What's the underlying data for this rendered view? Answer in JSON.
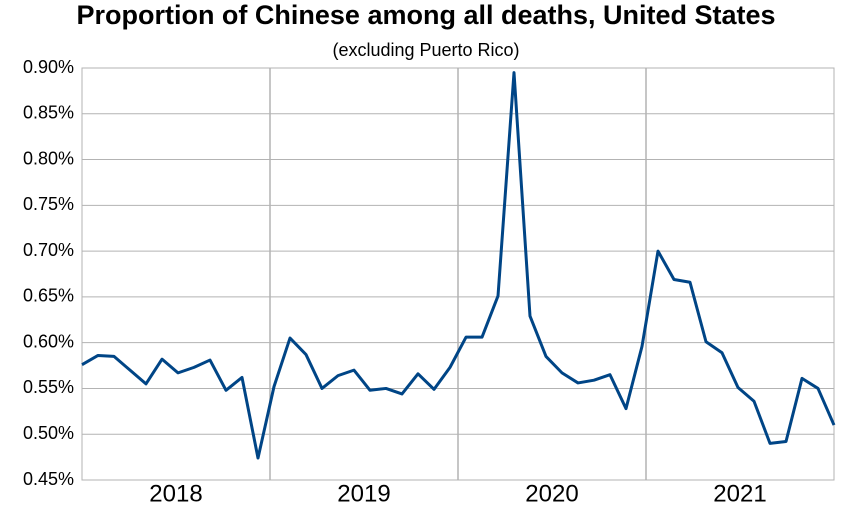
{
  "chart_data": {
    "type": "line",
    "title": "Proportion of Chinese among all deaths, United States",
    "subtitle": "(excluding Puerto Rico)",
    "years": [
      "2018",
      "2019",
      "2020",
      "2021"
    ],
    "series": [
      {
        "color": "#004586",
        "values": [
          0.576,
          0.586,
          0.585,
          0.57,
          0.555,
          0.582,
          0.567,
          0.573,
          0.581,
          0.548,
          0.562,
          0.474,
          0.552,
          0.605,
          0.587,
          0.55,
          0.564,
          0.57,
          0.548,
          0.55,
          0.544,
          0.566,
          0.549,
          0.573,
          0.606,
          0.606,
          0.651,
          0.895,
          0.629,
          0.585,
          0.567,
          0.556,
          0.559,
          0.565,
          0.528,
          0.596,
          0.7,
          0.669,
          0.666,
          0.601,
          0.589,
          0.551,
          0.536,
          0.49,
          0.492,
          0.561,
          0.55,
          0.51
        ]
      }
    ],
    "ylim": [
      0.45,
      0.9
    ],
    "yticks": [
      {
        "value": 0.45,
        "label": "0.45%"
      },
      {
        "value": 0.5,
        "label": "0.50%"
      },
      {
        "value": 0.55,
        "label": "0.55%"
      },
      {
        "value": 0.6,
        "label": "0.60%"
      },
      {
        "value": 0.65,
        "label": "0.65%"
      },
      {
        "value": 0.7,
        "label": "0.70%"
      },
      {
        "value": 0.75,
        "label": "0.75%"
      },
      {
        "value": 0.8,
        "label": "0.80%"
      },
      {
        "value": 0.85,
        "label": "0.85%"
      },
      {
        "value": 0.9,
        "label": "0.90%"
      }
    ],
    "grid": true
  }
}
